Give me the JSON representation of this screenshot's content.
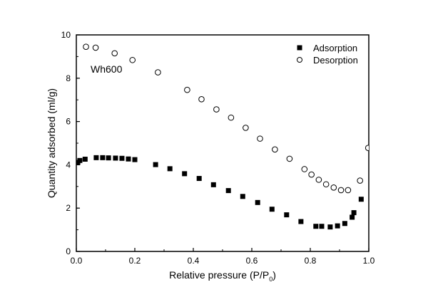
{
  "chart_data": {
    "type": "scatter",
    "title": "",
    "annotation": "Wh600",
    "xlabel": "Relative pressure (P/P",
    "xlabel_sub": "0",
    "xlabel_suffix": ")",
    "ylabel": "Quantity adsorbed (ml/g)",
    "xlim": [
      0.0,
      1.0
    ],
    "ylim": [
      0,
      10
    ],
    "x_ticks": [
      "0.0",
      "0.2",
      "0.4",
      "0.6",
      "0.8",
      "1.0"
    ],
    "x_tick_values": [
      0.0,
      0.2,
      0.4,
      0.6,
      0.8,
      1.0
    ],
    "x_minor_step": 0.1,
    "y_ticks": [
      "0",
      "2",
      "4",
      "6",
      "8",
      "10"
    ],
    "y_tick_values": [
      0,
      2,
      4,
      6,
      8,
      10
    ],
    "y_minor_step": 1,
    "grid": false,
    "legend_position": "top-right",
    "series": [
      {
        "name": "Adsorption",
        "marker": "filled-square",
        "color": "#000000",
        "x": [
          0.005,
          0.012,
          0.03,
          0.068,
          0.09,
          0.11,
          0.134,
          0.156,
          0.178,
          0.2,
          0.271,
          0.32,
          0.37,
          0.42,
          0.469,
          0.52,
          0.569,
          0.62,
          0.669,
          0.719,
          0.768,
          0.819,
          0.839,
          0.868,
          0.893,
          0.918,
          0.943,
          0.949,
          0.974
        ],
        "y": [
          4.11,
          4.2,
          4.26,
          4.33,
          4.33,
          4.32,
          4.31,
          4.3,
          4.27,
          4.24,
          4.01,
          3.82,
          3.59,
          3.37,
          3.08,
          2.81,
          2.54,
          2.26,
          1.95,
          1.69,
          1.38,
          1.16,
          1.16,
          1.13,
          1.18,
          1.29,
          1.58,
          1.79,
          2.41
        ]
      },
      {
        "name": "Desorption",
        "marker": "open-circle",
        "color": "#000000",
        "x": [
          0.033,
          0.066,
          0.131,
          0.192,
          0.279,
          0.379,
          0.428,
          0.479,
          0.529,
          0.579,
          0.628,
          0.679,
          0.729,
          0.78,
          0.804,
          0.829,
          0.854,
          0.88,
          0.905,
          0.929,
          0.97,
          0.998
        ],
        "y": [
          9.45,
          9.41,
          9.15,
          8.84,
          8.27,
          7.46,
          7.03,
          6.56,
          6.18,
          5.71,
          5.21,
          4.71,
          4.28,
          3.8,
          3.55,
          3.31,
          3.1,
          2.95,
          2.83,
          2.83,
          3.27,
          4.78
        ]
      }
    ]
  }
}
